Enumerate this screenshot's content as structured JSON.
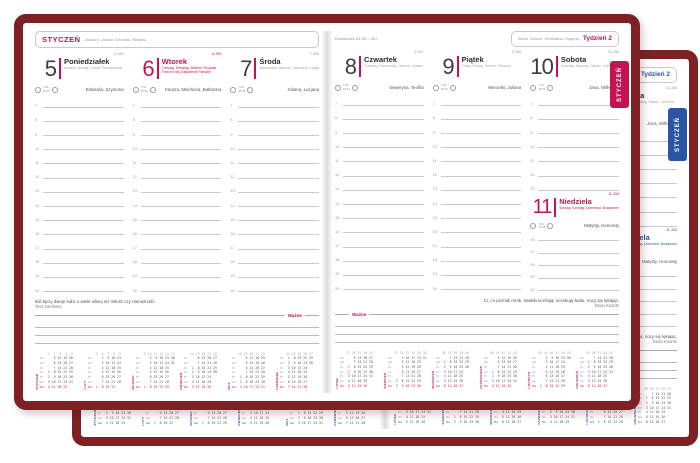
{
  "colors": {
    "cover": "#7e2125",
    "accent_front": "#c4134e",
    "accent_back": "#2a55a4"
  },
  "tab": {
    "label": "STYCZEŃ"
  },
  "left_header": {
    "month": "STYCZEŃ",
    "langs": "January, Januar, Gennaio, Январь"
  },
  "right_header": {
    "zodiac": "Koziorożec 22.XII – 20.I",
    "week_langs": "Week, Woche, Settimana, Неделя",
    "week_label": "Tydzień 2"
  },
  "important_label": "Ważne",
  "quote_left": {
    "text": "Ból łączy dwoje ludzi o wiele silniej niż miłość czy namiętność.",
    "author": "Tess Gerritsen"
  },
  "quote_right": {
    "text": "Ci, co poznali mrok, światło kochają; oczekują świtu, nocy się lękając.",
    "author": "Dean Koontz"
  },
  "hours": [
    "7",
    "8",
    "9",
    "10",
    "11",
    "12",
    "13",
    "14",
    "15",
    "16",
    "17",
    "18",
    "19",
    "20"
  ],
  "hours_sat": [
    "7",
    "8",
    "9",
    "10",
    "11",
    "12",
    "13"
  ],
  "hours_sun": [
    "16",
    "17",
    "18",
    "19",
    "20"
  ],
  "days_left": [
    {
      "num": "5",
      "name": "Poniedziałek",
      "langs": "Monday, Montag, Lunedì, Понедельник",
      "ordinal": "5-360",
      "holiday": false,
      "name_days": "Edwarda, Szymona",
      "sunrise": "7:44",
      "sunset": "15:37"
    },
    {
      "num": "6",
      "name": "Wtorek",
      "langs": "Tuesday, Dienstag, Martedì, Вторник",
      "note": "Trzech Króli (Objawienie Pańskie)",
      "ordinal": "6-359",
      "holiday": true,
      "name_days": "Kacpra, Melchiora, Baltazara",
      "sunrise": "7:44",
      "sunset": "15:38"
    },
    {
      "num": "7",
      "name": "Środa",
      "langs": "Wednesday, Mittwoch, Mercoledì, Среда",
      "ordinal": "7-358",
      "holiday": false,
      "name_days": "Juliana, Lucjana",
      "sunrise": "7:43",
      "sunset": "15:40"
    }
  ],
  "days_right": [
    {
      "num": "8",
      "name": "Czwartek",
      "langs": "Thursday, Donnerstag, Giovedì, Четверг",
      "ordinal": "8-357",
      "holiday": false,
      "name_days": "Seweryna, Teofila",
      "sunrise": "7:43",
      "sunset": "15:41"
    },
    {
      "num": "9",
      "name": "Piątek",
      "langs": "Friday, Freitag, Venerdì, Пятница",
      "ordinal": "9-356",
      "holiday": false,
      "name_days": "Weroniki, Juliana",
      "sunrise": "7:42",
      "sunset": "15:43"
    },
    {
      "num": "10",
      "name": "Sobota",
      "langs": "Saturday, Samstag, Sabato, Суббота",
      "ordinal": "10-355",
      "holiday": false,
      "name_days": "Jana, Wilhelma",
      "sunrise": "7:41",
      "sunset": "15:44",
      "sunday": {
        "num": "11",
        "name": "Niedziela",
        "langs": "Sunday, Sonntag, Domenica, Воскресенье",
        "ordinal": "11-354",
        "holiday": true,
        "name_days": "Matyldy, Honoraty",
        "sunrise": "7:41",
        "sunset": "15:46"
      }
    }
  ],
  "minical": {
    "weekdays": [
      "Pn",
      "Wt",
      "Śr",
      "Cz",
      "Pt",
      "So",
      "Nd"
    ],
    "months_left": [
      {
        "name": "STYCZEŃ",
        "weeks": " 1  2  3  4  5",
        "rows": [
          "    5 12 19 26",
          "    6 13 20 27",
          "    7 14 21 28",
          " 1  8 15 22 29",
          " 2  9 16 23 30",
          " 3 10 17 24 31",
          " 4 11 18 25"
        ]
      },
      {
        "name": "LUTY",
        "weeks": " 5  6  7  8  9",
        "rows": [
          "    2  9 16 23",
          "    3 10 17 24",
          "    4 11 18 25",
          "    5 12 19 26",
          "    6 13 20 27",
          "    7 14 21 28",
          " 1  8 15 22"
        ]
      },
      {
        "name": "MARZEC",
        "weeks": " 9 10 11 12 13 14",
        "rows": [
          "    2  9 16 23 30",
          "    3 10 17 24 31",
          "    4 11 18 25",
          "    5 12 19 26",
          "    6 13 20 27",
          "    7 14 21 28",
          " 1  8 15 22 29"
        ]
      },
      {
        "name": "KWIECIEŃ",
        "weeks": "14 15 16 17 18",
        "rows": [
          "    6 13 20 27",
          "    7 14 21 28",
          " 1  8 15 22 29",
          " 2  9 16 23 30",
          " 3 10 17 24",
          " 4 11 18 25",
          " 5 12 19 26"
        ]
      },
      {
        "name": "MAJ",
        "weeks": "18 19 20 21 22",
        "rows": [
          "    4 11 18 25",
          "    5 12 19 26",
          "    6 13 20 27",
          "    7 14 21 28",
          " 1  8 15 22 29",
          " 2  9 16 23 30",
          " 3 10 17 24 31"
        ]
      },
      {
        "name": "CZERWIEC",
        "weeks": "23 24 25 26 27",
        "rows": [
          " 1  8 15 22 29",
          " 2  9 16 23 30",
          " 3 10 17 24",
          " 4 11 18 25",
          " 5 12 19 26",
          " 6 13 20 27",
          " 7 14 21 28"
        ]
      }
    ],
    "months_right": [
      {
        "name": "LIPIEC",
        "weeks": "27 28 29 30 31",
        "rows": [
          "    6 13 20 27",
          "    7 14 21 28",
          " 1  8 15 22 29",
          " 2  9 16 23 30",
          " 3 10 17 24 31",
          " 4 11 18 25",
          " 5 12 19 26"
        ]
      },
      {
        "name": "SIERPIEŃ",
        "weeks": "31 32 33 34 35 36",
        "rows": [
          "    3 10 17 24 31",
          "    4 11 18 25",
          "    5 12 19 26",
          "    6 13 20 27",
          "    7 14 21 28",
          " 1  8 15 22 29",
          " 2  9 16 23 30"
        ]
      },
      {
        "name": "WRZESIEŃ",
        "weeks": "36 37 38 39 40",
        "rows": [
          "    7 14 21 28",
          " 1  8 15 22 29",
          " 2  9 16 23 30",
          " 3 10 17 24",
          " 4 11 18 25",
          " 5 12 19 26",
          " 6 13 20 27"
        ]
      },
      {
        "name": "PAŹDZIERNIK",
        "weeks": "40 41 42 43 44",
        "rows": [
          "    5 12 19 26",
          "    6 13 20 27",
          "    7 14 21 28",
          " 1  8 15 22 29",
          " 2  9 16 23 30",
          " 3 10 17 24 31",
          " 4 11 18 25"
        ]
      },
      {
        "name": "LISTOPAD",
        "weeks": "44 45 46 47 48 49",
        "rows": [
          "    2  9 16 23 30",
          "    3 10 17 24",
          "    4 11 18 25",
          "    5 12 19 26",
          "    6 13 20 27",
          "    7 14 21 28",
          " 1  8 15 22 29"
        ]
      },
      {
        "name": "GRUDZIEŃ",
        "weeks": "49 50 51 52 53",
        "rows": [
          "    7 14 21 28",
          " 1  8 15 22 29",
          " 2  9 16 23 30",
          " 3 10 17 24 31",
          " 4 11 18 25",
          " 5 12 19 26",
          " 6 13 20 27"
        ]
      }
    ]
  }
}
